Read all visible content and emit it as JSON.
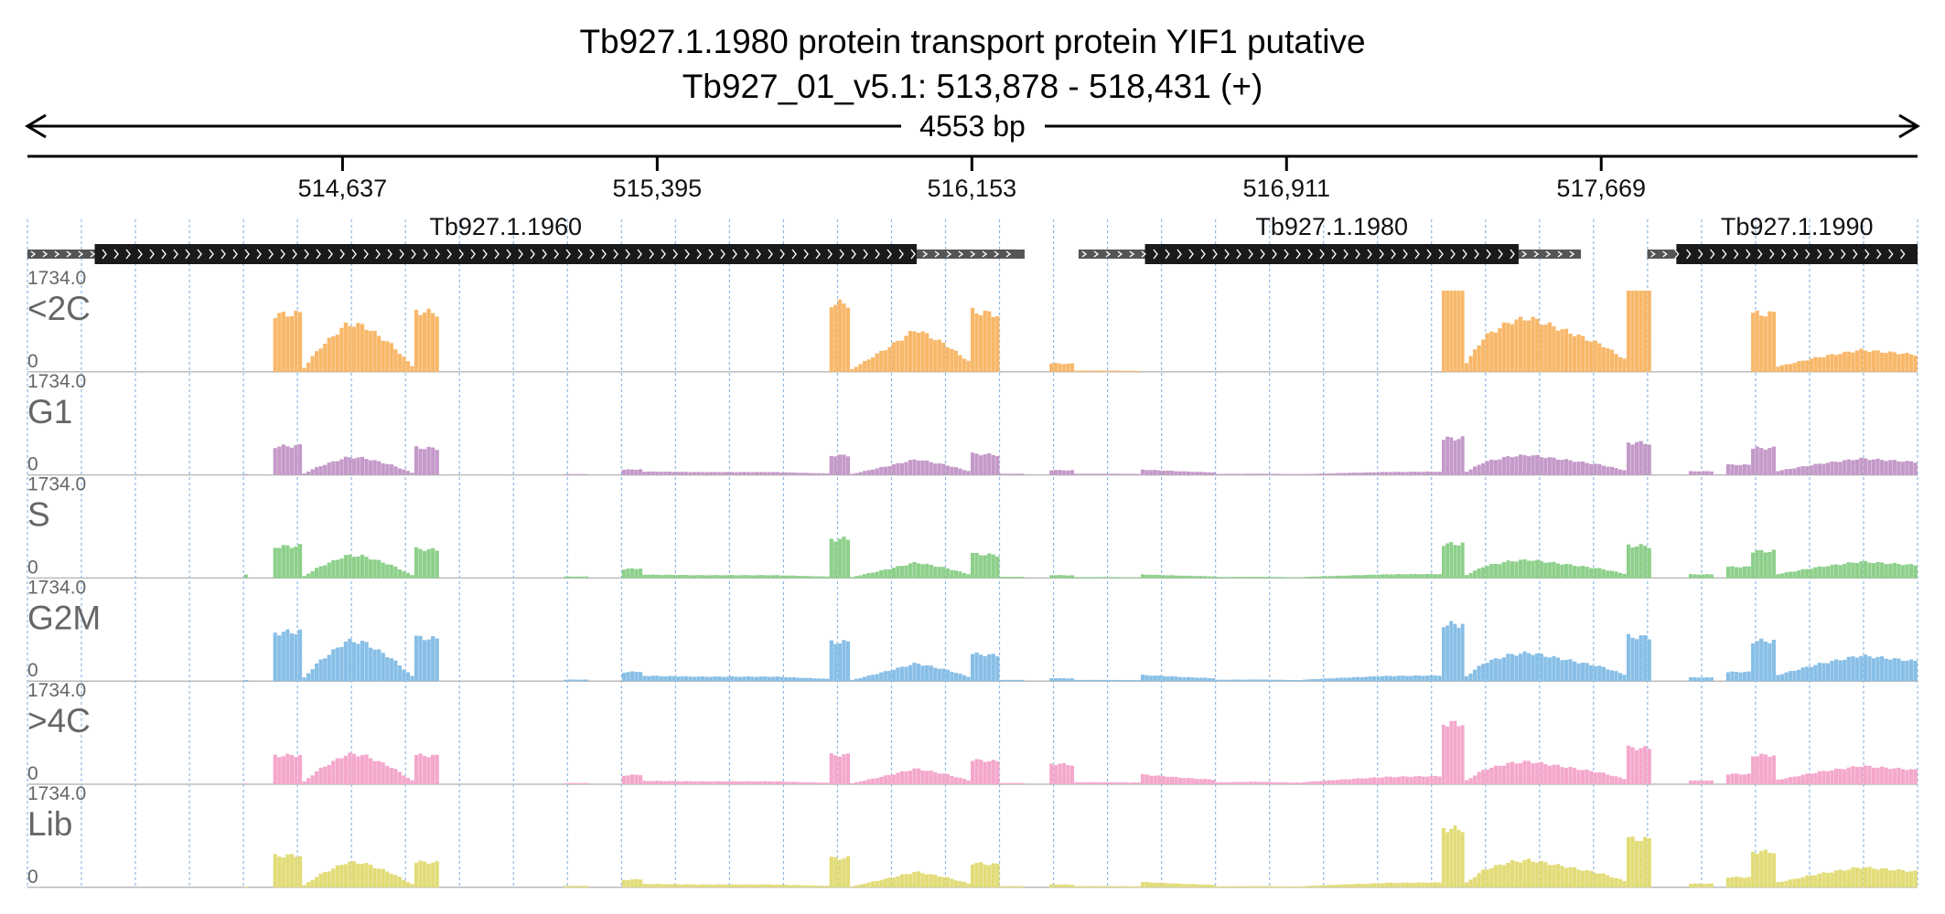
{
  "title": {
    "line1": "Tb927.1.1980  protein transport protein YIF1  putative",
    "line2": "Tb927_01_v5.1: 513,878 - 518,431 (+)"
  },
  "span_label": "4553 bp",
  "colors": {
    "text": "#222222",
    "track_label": "#666666",
    "grid": "#8fb8e0",
    "gene_body": "#1a1a1a",
    "gene_utr": "#555555",
    "axis": "#000000"
  },
  "chart_data": {
    "type": "area",
    "region": {
      "chrom": "Tb927_01_v5.1",
      "start": 513878,
      "end": 518431,
      "strand": "+"
    },
    "ticks": [
      {
        "pos": 514637,
        "label": "514,637"
      },
      {
        "pos": 515395,
        "label": "515,395"
      },
      {
        "pos": 516153,
        "label": "516,153"
      },
      {
        "pos": 516911,
        "label": "516,911"
      },
      {
        "pos": 517669,
        "label": "517,669"
      }
    ],
    "genes": [
      {
        "name": "Tb927.1.1960",
        "utr5_start": 513878,
        "cds_start": 514040,
        "cds_end": 516020,
        "utr3_end": 516280
      },
      {
        "name": "Tb927.1.1980",
        "utr5_start": 516410,
        "cds_start": 516570,
        "cds_end": 517470,
        "utr3_end": 517620
      },
      {
        "name": "Tb927.1.1990",
        "utr5_start": 517780,
        "cds_start": 517850,
        "cds_end": 518431,
        "utr3_end": 518431
      }
    ],
    "ymin": 0,
    "ymax": 1734.0,
    "ymax_label": "1734.0",
    "ymin_label": "0",
    "segments": [
      {
        "start": 514400,
        "end": 514410,
        "shape": [
          [
            0,
            0.05
          ],
          [
            1,
            0.05
          ]
        ]
      },
      {
        "start": 514470,
        "end": 514540,
        "shape": [
          [
            0,
            0.7
          ],
          [
            1,
            0.72
          ]
        ]
      },
      {
        "start": 514540,
        "end": 514810,
        "shape": [
          [
            0,
            0.02
          ],
          [
            0.15,
            0.3
          ],
          [
            0.4,
            0.62
          ],
          [
            0.55,
            0.6
          ],
          [
            0.8,
            0.35
          ],
          [
            1,
            0.05
          ]
        ]
      },
      {
        "start": 514810,
        "end": 514870,
        "shape": [
          [
            0,
            0.75
          ],
          [
            1,
            0.72
          ]
        ]
      },
      {
        "start": 515170,
        "end": 515230,
        "shape": [
          [
            0,
            0.12
          ],
          [
            1,
            0.12
          ]
        ]
      },
      {
        "start": 515310,
        "end": 515360,
        "shape": [
          [
            0,
            0.18
          ],
          [
            1,
            0.2
          ]
        ]
      },
      {
        "start": 515360,
        "end": 515810,
        "shape": [
          [
            0,
            0.12
          ],
          [
            0.3,
            0.1
          ],
          [
            0.7,
            0.1
          ],
          [
            1,
            0.05
          ]
        ]
      },
      {
        "start": 515810,
        "end": 515860,
        "shape": [
          [
            0,
            0.8
          ],
          [
            1,
            0.8
          ]
        ]
      },
      {
        "start": 515860,
        "end": 516150,
        "shape": [
          [
            0,
            0.02
          ],
          [
            0.3,
            0.3
          ],
          [
            0.55,
            0.55
          ],
          [
            0.8,
            0.35
          ],
          [
            1,
            0.12
          ]
        ]
      },
      {
        "start": 516150,
        "end": 516220,
        "shape": [
          [
            0,
            0.75
          ],
          [
            1,
            0.7
          ]
        ]
      },
      {
        "start": 516220,
        "end": 516280,
        "shape": [
          [
            0,
            0.05
          ],
          [
            1,
            0.05
          ]
        ]
      },
      {
        "start": 516340,
        "end": 516400,
        "shape": [
          [
            0,
            0.3
          ],
          [
            1,
            0.28
          ]
        ]
      },
      {
        "start": 516400,
        "end": 516560,
        "shape": [
          [
            0,
            0.1
          ],
          [
            0.5,
            0.1
          ],
          [
            1,
            0.08
          ]
        ]
      },
      {
        "start": 516560,
        "end": 516740,
        "shape": [
          [
            0,
            0.22
          ],
          [
            0.3,
            0.18
          ],
          [
            0.6,
            0.14
          ],
          [
            1,
            0.1
          ]
        ]
      },
      {
        "start": 516740,
        "end": 516950,
        "shape": [
          [
            0,
            0.08
          ],
          [
            0.5,
            0.1
          ],
          [
            1,
            0.06
          ]
        ]
      },
      {
        "start": 516950,
        "end": 517285,
        "shape": [
          [
            0,
            0.05
          ],
          [
            0.3,
            0.12
          ],
          [
            0.6,
            0.18
          ],
          [
            1,
            0.2
          ]
        ]
      },
      {
        "start": 517285,
        "end": 517340,
        "shape": [
          [
            0,
            1.0
          ],
          [
            1,
            1.0
          ]
        ]
      },
      {
        "start": 517340,
        "end": 517730,
        "shape": [
          [
            0,
            0.08
          ],
          [
            0.12,
            0.45
          ],
          [
            0.28,
            0.65
          ],
          [
            0.4,
            0.7
          ],
          [
            0.6,
            0.55
          ],
          [
            0.85,
            0.35
          ],
          [
            1,
            0.15
          ]
        ]
      },
      {
        "start": 517730,
        "end": 517790,
        "shape": [
          [
            0,
            1.0
          ],
          [
            1,
            0.98
          ]
        ]
      },
      {
        "start": 517880,
        "end": 517940,
        "shape": [
          [
            0,
            0.15
          ],
          [
            1,
            0.15
          ]
        ]
      },
      {
        "start": 517970,
        "end": 518030,
        "shape": [
          [
            0,
            0.25
          ],
          [
            1,
            0.25
          ]
        ]
      },
      {
        "start": 518030,
        "end": 518090,
        "shape": [
          [
            0,
            0.55
          ],
          [
            1,
            0.55
          ]
        ]
      },
      {
        "start": 518090,
        "end": 518431,
        "shape": [
          [
            0,
            0.1
          ],
          [
            0.3,
            0.3
          ],
          [
            0.6,
            0.45
          ],
          [
            1,
            0.35
          ]
        ]
      }
    ],
    "series": [
      {
        "name": "<2C",
        "color": "#f8b86a",
        "seg_scale": [
          0,
          1.0,
          0.95,
          1.0,
          0,
          0,
          0,
          1.05,
          0.95,
          1.0,
          0,
          0.35,
          0.15,
          0,
          0,
          0,
          1.3,
          0.95,
          1.28,
          0,
          0,
          1.3,
          0.6
        ]
      },
      {
        "name": "G1",
        "color": "#c49ac9",
        "seg_scale": [
          0.2,
          0.5,
          0.35,
          0.45,
          0.08,
          0.35,
          0.35,
          0.3,
          0.35,
          0.35,
          0.3,
          0.2,
          0.15,
          0.3,
          0.15,
          0.2,
          0.45,
          0.35,
          0.4,
          0.3,
          0.5,
          0.6,
          0.45
        ]
      },
      {
        "name": "S",
        "color": "#8dd08a",
        "seg_scale": [
          0.9,
          0.55,
          0.45,
          0.48,
          0.15,
          0.6,
          0.35,
          0.6,
          0.35,
          0.4,
          0.3,
          0.12,
          0.12,
          0.2,
          0.15,
          0.25,
          0.42,
          0.32,
          0.4,
          0.3,
          0.55,
          0.6,
          0.45
        ]
      },
      {
        "name": "G2M",
        "color": "#88bfe6",
        "seg_scale": [
          0.3,
          0.85,
          0.8,
          0.72,
          0.15,
          0.6,
          0.55,
          0.6,
          0.4,
          0.45,
          0.3,
          0.12,
          0.15,
          0.35,
          0.2,
          0.35,
          0.7,
          0.5,
          0.55,
          0.3,
          0.45,
          0.9,
          0.7
        ]
      },
      {
        "name": ">4C",
        "color": "#f4a8cc",
        "seg_scale": [
          0.2,
          0.5,
          0.6,
          0.48,
          0.12,
          0.6,
          0.35,
          0.45,
          0.35,
          0.4,
          0.3,
          0.85,
          0.25,
          0.55,
          0.3,
          0.5,
          0.75,
          0.4,
          0.45,
          0.3,
          0.5,
          0.65,
          0.5
        ]
      },
      {
        "name": "Lib",
        "color": "#e2dc78",
        "seg_scale": [
          0.2,
          0.55,
          0.5,
          0.42,
          0.15,
          0.5,
          0.35,
          0.45,
          0.35,
          0.4,
          0.3,
          0.12,
          0.15,
          0.3,
          0.15,
          0.3,
          0.72,
          0.48,
          0.6,
          0.3,
          0.5,
          0.8,
          0.55
        ]
      }
    ]
  }
}
